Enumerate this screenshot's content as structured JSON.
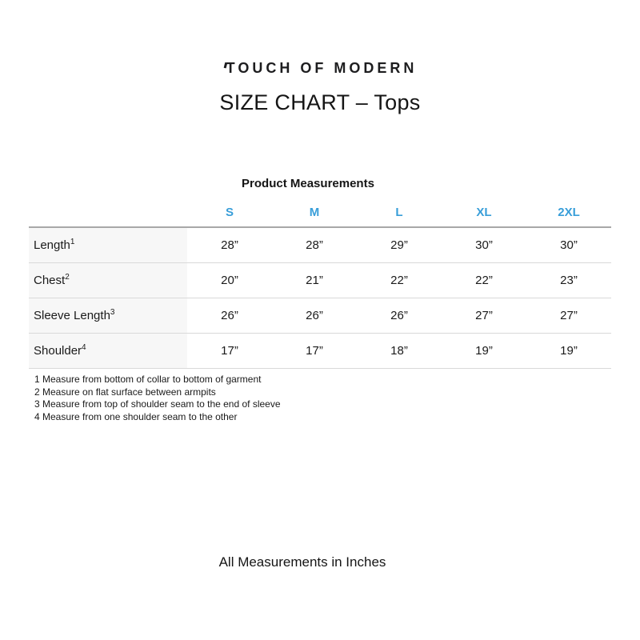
{
  "header": {
    "brand": "TOUCH OF MODERN",
    "title": "SIZE CHART – Tops"
  },
  "table": {
    "section_title": "Product Measurements",
    "columns": [
      "S",
      "M",
      "L",
      "XL",
      "2XL"
    ],
    "rows": [
      {
        "label": "Length",
        "sup": "1",
        "values": [
          "28”",
          "28”",
          "29”",
          "30”",
          "30”"
        ]
      },
      {
        "label": "Chest",
        "sup": "2",
        "values": [
          "20”",
          "21”",
          "22”",
          "22”",
          "23”"
        ]
      },
      {
        "label": "Sleeve Length",
        "sup": "3",
        "values": [
          "26”",
          "26”",
          "26”",
          "27”",
          "27”"
        ]
      },
      {
        "label": "Shoulder",
        "sup": "4",
        "values": [
          "17”",
          "17”",
          "18”",
          "19”",
          "19”"
        ]
      }
    ]
  },
  "footnotes": [
    "1 Measure from bottom of collar to bottom of garment",
    "2 Measure on flat surface between armpits",
    "3 Measure from top of shoulder seam to the end of sleeve",
    "4 Measure from one shoulder seam to the other"
  ],
  "footer": {
    "note": "All Measurements in Inches"
  },
  "colors": {
    "accent_blue": "#389ed9",
    "table_top_border": "#a8a8a8",
    "row_divider": "#d9d9d9",
    "label_column_bg": "#f7f7f7"
  }
}
